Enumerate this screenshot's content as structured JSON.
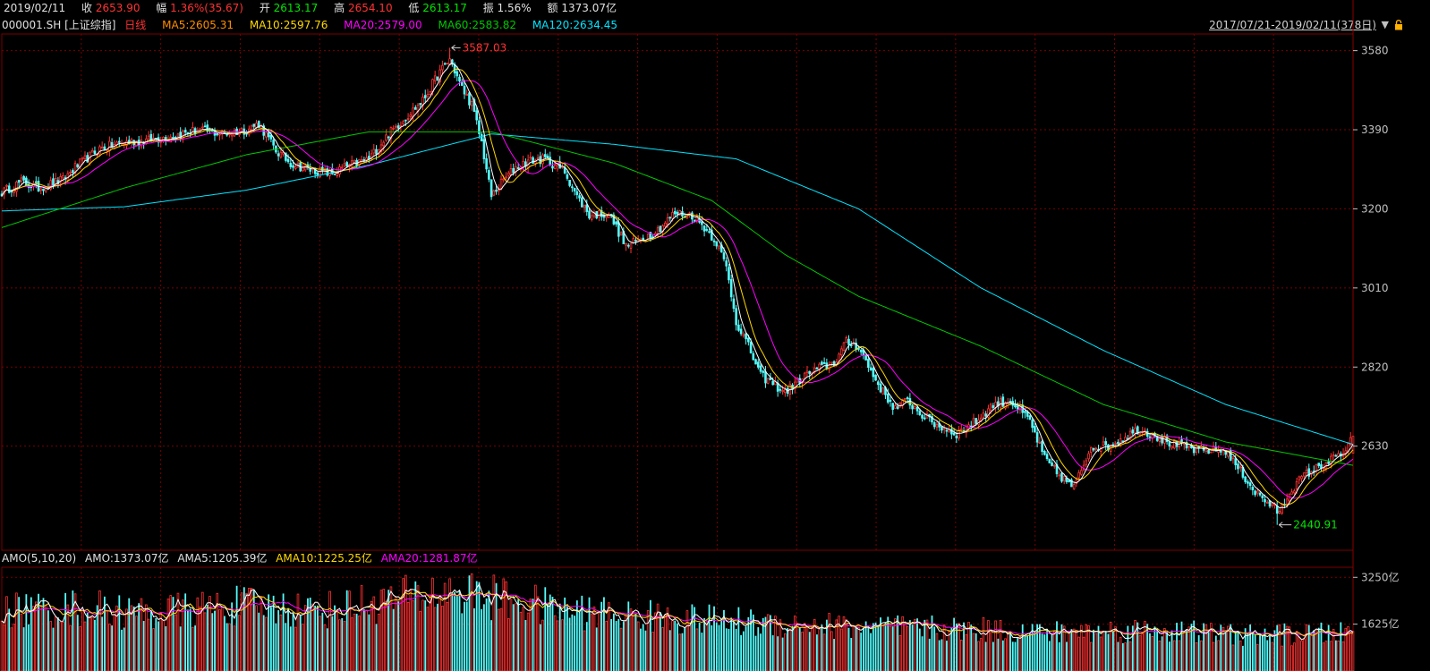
{
  "header": {
    "date": "2019/02/11",
    "close_label": "收",
    "close": "2653.90",
    "change_label": "幅",
    "change": "1.36%(35.67)",
    "open_label": "开",
    "open": "2613.17",
    "high_label": "高",
    "high": "2654.10",
    "low_label": "低",
    "low": "2613.17",
    "amplitude_label": "振",
    "amplitude": "1.56%",
    "amount_label": "额",
    "amount": "1373.07亿"
  },
  "indicator_bar": {
    "symbol": "000001.SH",
    "name": "[上证综指]",
    "period": "日线",
    "ma5": "MA5:2605.31",
    "ma10": "MA10:2597.76",
    "ma20": "MA20:2579.00",
    "ma60": "MA60:2583.82",
    "ma120": "MA120:2634.45",
    "range": "2017/07/21-2019/02/11(378日)"
  },
  "amo_bar": {
    "title": "AMO(5,10,20)",
    "amo": "AMO:1373.07亿",
    "ama5": "AMA5:1205.39亿",
    "ama10": "AMA10:1225.25亿",
    "ama20": "AMA20:1281.87亿"
  },
  "colors": {
    "up": "#ff3232",
    "down": "#54fcfc",
    "grid": "#7a0000",
    "ma5": "#ffffff",
    "ma10": "#ffd700",
    "ma20": "#ff00ff",
    "ma60": "#00c800",
    "ma120": "#00e5ff",
    "high_ann": "#ff3232",
    "low_ann": "#00e600"
  },
  "icons": {
    "dropdown": "triangle-down-icon",
    "lock": "lock-icon"
  },
  "chart_data": [
    {
      "type": "candlestick",
      "start": "2017/07/21",
      "end": "2019/02/11",
      "trading_days": 378,
      "ylim": [
        2380,
        3620
      ],
      "yticks": [
        "3580",
        "3390",
        "3200",
        "3010",
        "2820",
        "2630"
      ],
      "annotations": {
        "high": "3587.03",
        "low": "2440.91"
      },
      "last_candle": {
        "open": 2613.17,
        "high": 2654.1,
        "low": 2613.17,
        "close": 2653.9
      },
      "close_path": [
        [
          0,
          3240
        ],
        [
          8,
          3265
        ],
        [
          15,
          3250
        ],
        [
          25,
          3270
        ],
        [
          30,
          3300
        ],
        [
          40,
          3345
        ],
        [
          50,
          3360
        ],
        [
          60,
          3365
        ],
        [
          70,
          3375
        ],
        [
          80,
          3390
        ],
        [
          90,
          3380
        ],
        [
          100,
          3390
        ],
        [
          105,
          3405
        ],
        [
          112,
          3340
        ],
        [
          118,
          3310
        ],
        [
          125,
          3295
        ],
        [
          135,
          3285
        ],
        [
          140,
          3300
        ],
        [
          150,
          3320
        ],
        [
          158,
          3380
        ],
        [
          165,
          3420
        ],
        [
          172,
          3460
        ],
        [
          178,
          3520
        ],
        [
          183,
          3560
        ],
        [
          188,
          3490
        ],
        [
          192,
          3450
        ],
        [
          196,
          3360
        ],
        [
          200,
          3230
        ],
        [
          205,
          3270
        ],
        [
          210,
          3300
        ],
        [
          215,
          3315
        ],
        [
          222,
          3320
        ],
        [
          230,
          3290
        ],
        [
          235,
          3230
        ],
        [
          240,
          3185
        ],
        [
          248,
          3190
        ],
        [
          255,
          3110
        ],
        [
          262,
          3130
        ],
        [
          268,
          3150
        ],
        [
          275,
          3190
        ],
        [
          282,
          3185
        ],
        [
          288,
          3150
        ],
        [
          292,
          3120
        ],
        [
          296,
          3060
        ],
        [
          300,
          2930
        ],
        [
          305,
          2870
        ],
        [
          310,
          2800
        ],
        [
          315,
          2780
        ],
        [
          320,
          2760
        ],
        [
          328,
          2800
        ],
        [
          335,
          2820
        ],
        [
          340,
          2830
        ],
        [
          345,
          2880
        ],
        [
          350,
          2870
        ],
        [
          355,
          2810
        ],
        [
          360,
          2760
        ],
        [
          365,
          2720
        ],
        [
          370,
          2740
        ],
        [
          375,
          2710
        ],
        [
          382,
          2680
        ],
        [
          390,
          2660
        ],
        [
          398,
          2690
        ],
        [
          405,
          2730
        ],
        [
          412,
          2740
        ],
        [
          420,
          2690
        ],
        [
          426,
          2600
        ],
        [
          432,
          2560
        ],
        [
          438,
          2530
        ],
        [
          445,
          2630
        ],
        [
          452,
          2630
        ],
        [
          458,
          2650
        ],
        [
          464,
          2670
        ],
        [
          470,
          2660
        ],
        [
          476,
          2640
        ],
        [
          482,
          2630
        ],
        [
          488,
          2620
        ],
        [
          494,
          2620
        ],
        [
          500,
          2620
        ],
        [
          506,
          2570
        ],
        [
          512,
          2520
        ],
        [
          518,
          2490
        ],
        [
          522,
          2470
        ],
        [
          526,
          2520
        ],
        [
          532,
          2560
        ],
        [
          538,
          2580
        ],
        [
          544,
          2600
        ],
        [
          549,
          2618
        ],
        [
          552,
          2653
        ]
      ],
      "ma120_path": [
        [
          0,
          3195
        ],
        [
          50,
          3205
        ],
        [
          100,
          3245
        ],
        [
          150,
          3305
        ],
        [
          200,
          3380
        ],
        [
          250,
          3355
        ],
        [
          300,
          3320
        ],
        [
          350,
          3200
        ],
        [
          400,
          3010
        ],
        [
          450,
          2860
        ],
        [
          500,
          2730
        ],
        [
          552,
          2634
        ]
      ],
      "ma60_path": [
        [
          0,
          3155
        ],
        [
          50,
          3250
        ],
        [
          100,
          3330
        ],
        [
          150,
          3385
        ],
        [
          200,
          3385
        ],
        [
          250,
          3310
        ],
        [
          290,
          3220
        ],
        [
          320,
          3090
        ],
        [
          350,
          2990
        ],
        [
          400,
          2870
        ],
        [
          450,
          2730
        ],
        [
          500,
          2640
        ],
        [
          552,
          2584
        ]
      ]
    },
    {
      "type": "bar",
      "name": "AMO",
      "unit": "亿",
      "ylim": [
        0,
        3600
      ],
      "yticks": [
        "3250亿",
        "1625亿"
      ],
      "last": 1373.07,
      "amo_path": [
        [
          0,
          2200
        ],
        [
          30,
          2300
        ],
        [
          60,
          2100
        ],
        [
          100,
          2400
        ],
        [
          130,
          2200
        ],
        [
          160,
          2600
        ],
        [
          185,
          2900
        ],
        [
          200,
          2700
        ],
        [
          230,
          2200
        ],
        [
          260,
          2000
        ],
        [
          300,
          1800
        ],
        [
          350,
          1600
        ],
        [
          400,
          1500
        ],
        [
          430,
          1400
        ],
        [
          470,
          1500
        ],
        [
          510,
          1300
        ],
        [
          540,
          1350
        ],
        [
          552,
          1373
        ]
      ]
    }
  ]
}
